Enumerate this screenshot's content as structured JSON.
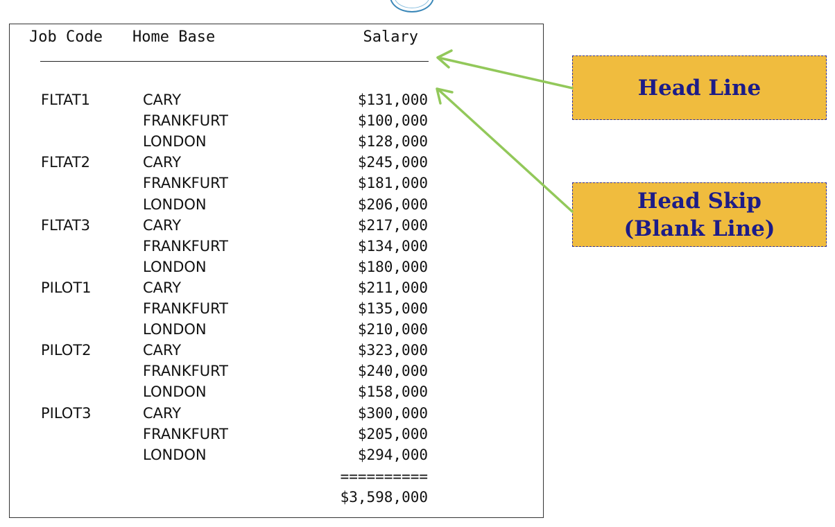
{
  "report": {
    "headers": {
      "job_code": "Job Code",
      "home_base": "Home Base",
      "salary": "Salary"
    },
    "rows": [
      {
        "job": "FLTAT1",
        "base": "CARY",
        "salary": "$131,000"
      },
      {
        "job": "",
        "base": "FRANKFURT",
        "salary": "$100,000"
      },
      {
        "job": "",
        "base": "LONDON",
        "salary": "$128,000"
      },
      {
        "job": "FLTAT2",
        "base": "CARY",
        "salary": "$245,000"
      },
      {
        "job": "",
        "base": "FRANKFURT",
        "salary": "$181,000"
      },
      {
        "job": "",
        "base": "LONDON",
        "salary": "$206,000"
      },
      {
        "job": "FLTAT3",
        "base": "CARY",
        "salary": "$217,000"
      },
      {
        "job": "",
        "base": "FRANKFURT",
        "salary": "$134,000"
      },
      {
        "job": "",
        "base": "LONDON",
        "salary": "$180,000"
      },
      {
        "job": "PILOT1",
        "base": "CARY",
        "salary": "$211,000"
      },
      {
        "job": "",
        "base": "FRANKFURT",
        "salary": "$135,000"
      },
      {
        "job": "",
        "base": "LONDON",
        "salary": "$210,000"
      },
      {
        "job": "PILOT2",
        "base": "CARY",
        "salary": "$323,000"
      },
      {
        "job": "",
        "base": "FRANKFURT",
        "salary": "$240,000"
      },
      {
        "job": "",
        "base": "LONDON",
        "salary": "$158,000"
      },
      {
        "job": "PILOT3",
        "base": "CARY",
        "salary": "$300,000"
      },
      {
        "job": "",
        "base": "FRANKFURT",
        "salary": "$205,000"
      },
      {
        "job": "",
        "base": "LONDON",
        "salary": "$294,000"
      }
    ],
    "total_rule": "==========",
    "total": "$3,598,000"
  },
  "callouts": {
    "head_line": [
      "Head Line"
    ],
    "head_skip": [
      "Head Skip",
      "(Blank Line)"
    ]
  },
  "colors": {
    "callout_fill": "#f0bc3e",
    "callout_text": "#1c1c88",
    "arrow": "#92c85a"
  }
}
